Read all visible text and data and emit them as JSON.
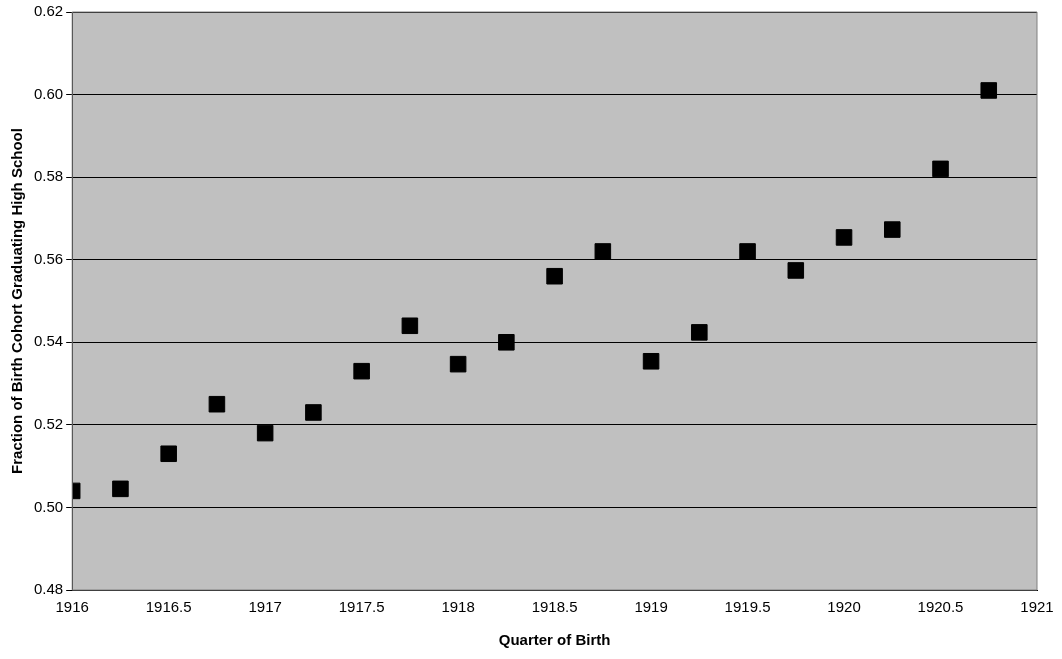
{
  "chart_data": {
    "type": "scatter",
    "xlabel": "Quarter of Birth",
    "ylabel": "Fraction of Birth Cohort Graduating High School",
    "x": [
      1916,
      1916.25,
      1916.5,
      1916.75,
      1917,
      1917.25,
      1917.5,
      1917.75,
      1918,
      1918.25,
      1918.5,
      1918.75,
      1919,
      1919.25,
      1919.5,
      1919.75,
      1920,
      1920.25,
      1920.5,
      1920.75
    ],
    "series": [
      {
        "color": "#000000",
        "values": [
          0.504,
          0.5045,
          0.513,
          0.525,
          0.518,
          0.523,
          0.533,
          0.544,
          0.5347,
          0.54,
          0.556,
          0.562,
          0.5354,
          0.5424,
          0.562,
          0.5574,
          0.5654,
          0.5673,
          0.582,
          0.601
        ]
      }
    ],
    "xlim": [
      1916,
      1921
    ],
    "xticks": [
      1916,
      1916.5,
      1917,
      1917.5,
      1918,
      1918.5,
      1919,
      1919.5,
      1920,
      1920.5,
      1921
    ],
    "ylim": [
      0.48,
      0.62
    ],
    "yticks": [
      0.48,
      {
        "value": 0.5,
        "label": "0.50"
      },
      0.52,
      0.54,
      0.56,
      0.58,
      {
        "value": 0.6,
        "label": "0.60"
      },
      0.62
    ],
    "grid": "y",
    "legend": false,
    "marker": "square"
  }
}
